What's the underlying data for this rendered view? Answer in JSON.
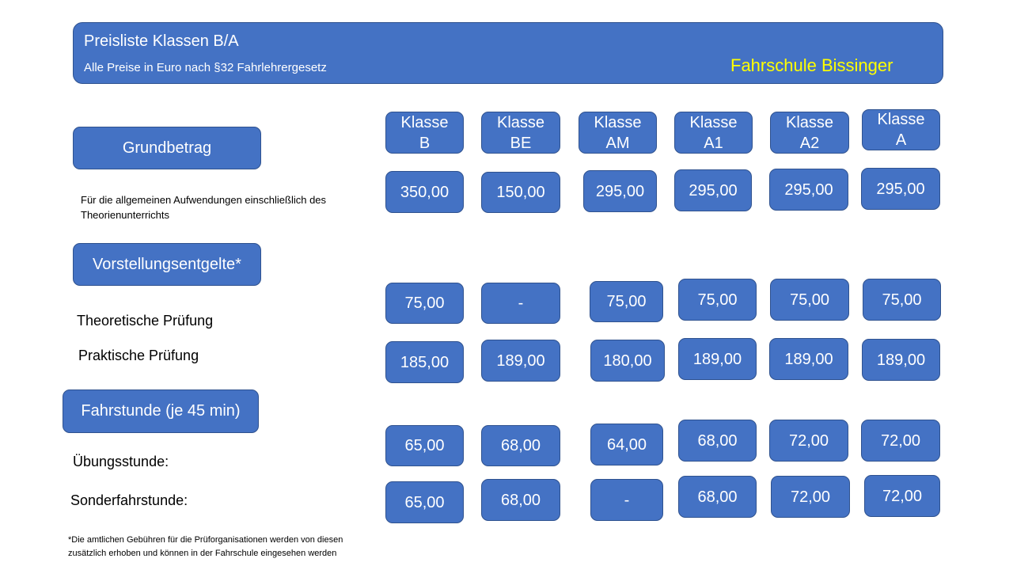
{
  "header": {
    "title": "Preisliste Klassen B/A",
    "subtitle": "Alle Preise in Euro nach §32 Fahrlehrergesetz",
    "brand": "Fahrschule Bissinger",
    "brand_color": "#FFFF00",
    "box_color": "#4472C4"
  },
  "sections": {
    "grundbetrag": "Grundbetrag",
    "vorstellung": "Vorstellungsentgelte*",
    "fahrstunde": "Fahrstunde (je 45 min)"
  },
  "labels": {
    "grund_desc_1": "Für die allgemeinen Aufwendungen einschließlich des",
    "grund_desc_2": "Theorienunterrichts",
    "theorie": "Theoretische Prüfung",
    "praxis": "Praktische Prüfung",
    "uebung": "Übungsstunde:",
    "sonder": "Sonderfahrstunde:"
  },
  "footnote": {
    "line1": "*Die amtlichen Gebühren für die Prüforganisationen werden von diesen",
    "line2": "zusätzlich erhoben und können in der Fahrschule eingesehen werden"
  },
  "classes": [
    {
      "l1": "Klasse",
      "l2": "B"
    },
    {
      "l1": "Klasse",
      "l2": "BE"
    },
    {
      "l1": "Klasse",
      "l2": "AM"
    },
    {
      "l1": "Klasse",
      "l2": "A1"
    },
    {
      "l1": "Klasse",
      "l2": "A2"
    },
    {
      "l1": "Klasse",
      "l2": "A"
    }
  ],
  "rows": {
    "grundbetrag": [
      "350,00",
      "150,00",
      "295,00",
      "295,00",
      "295,00",
      "295,00"
    ],
    "theorie": [
      "75,00",
      "-",
      "75,00",
      "75,00",
      "75,00",
      "75,00"
    ],
    "praxis": [
      "185,00",
      "189,00",
      "180,00",
      "189,00",
      "189,00",
      "189,00"
    ],
    "uebung": [
      "65,00",
      "68,00",
      "64,00",
      "68,00",
      "72,00",
      "72,00"
    ],
    "sonder": [
      "65,00",
      "68,00",
      "-",
      "68,00",
      "72,00",
      "72,00"
    ]
  }
}
